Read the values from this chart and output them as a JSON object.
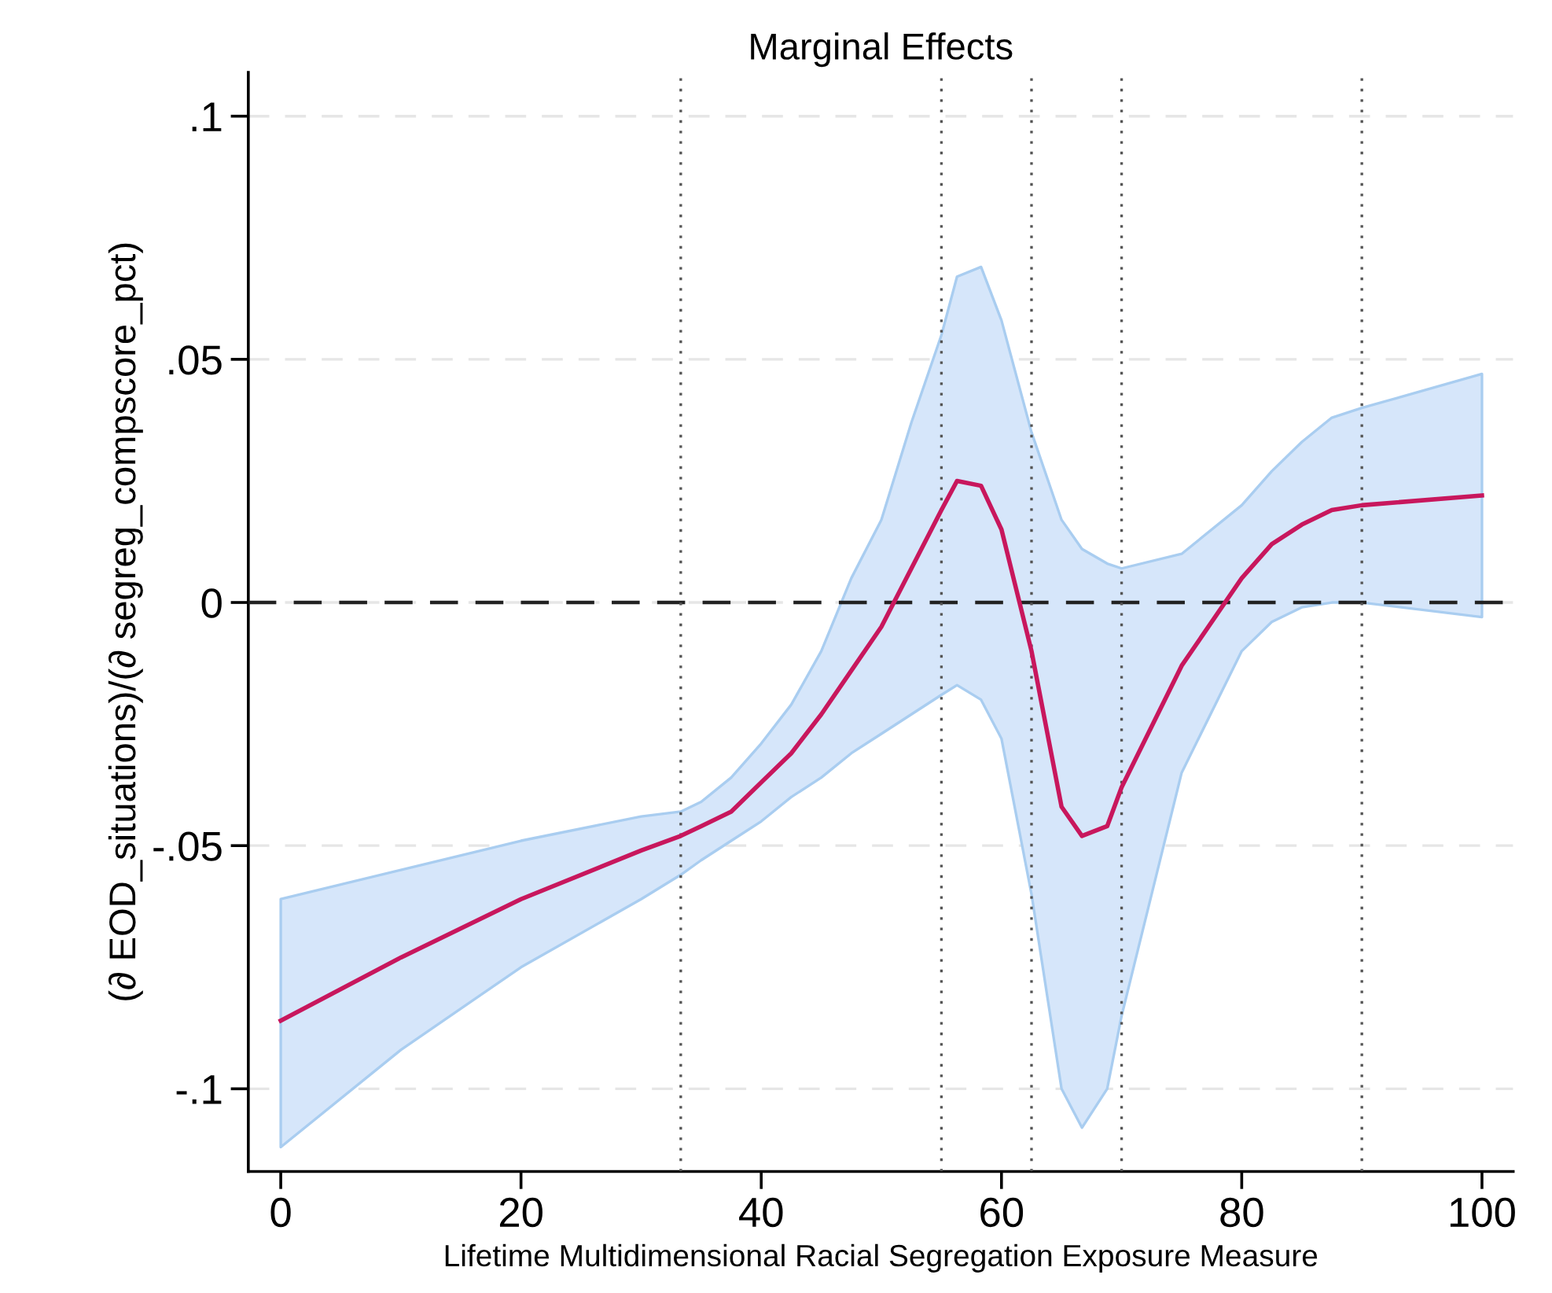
{
  "chart_data": {
    "type": "line",
    "title": "Marginal Effects",
    "xlabel": "Lifetime Multidimensional Racial Segregation Exposure Measure",
    "ylabel": "(∂ EOD_situations)/(∂ segreg_compscore_pct)",
    "series": [
      {
        "color": "#c8175d",
        "x": [
          0,
          10,
          20,
          30,
          33.3,
          35,
          37.5,
          40,
          42.5,
          45,
          47.5,
          50,
          52.5,
          55,
          56.3,
          58.3,
          60,
          62.5,
          65,
          66.7,
          68.8,
          70,
          75,
          80,
          82.5,
          85,
          87.5,
          90,
          100
        ],
        "values": [
          -0.086,
          -0.073,
          -0.061,
          -0.051,
          -0.048,
          -0.046,
          -0.043,
          -0.037,
          -0.031,
          -0.023,
          -0.014,
          -0.005,
          0.007,
          0.019,
          0.025,
          0.024,
          0.015,
          -0.01,
          -0.042,
          -0.048,
          -0.046,
          -0.038,
          -0.013,
          0.005,
          0.012,
          0.016,
          0.019,
          0.02,
          0.022
        ],
        "upper": [
          -0.061,
          -0.055,
          -0.049,
          -0.044,
          -0.043,
          -0.041,
          -0.036,
          -0.029,
          -0.021,
          -0.01,
          0.005,
          0.017,
          0.037,
          0.055,
          0.067,
          0.069,
          0.058,
          0.035,
          0.017,
          0.011,
          0.008,
          0.007,
          0.01,
          0.02,
          0.027,
          0.033,
          0.038,
          0.04,
          0.047
        ],
        "lower": [
          -0.112,
          -0.092,
          -0.075,
          -0.061,
          -0.056,
          -0.053,
          -0.049,
          -0.045,
          -0.04,
          -0.036,
          -0.031,
          -0.027,
          -0.023,
          -0.019,
          -0.017,
          -0.02,
          -0.028,
          -0.06,
          -0.1,
          -0.108,
          -0.1,
          -0.085,
          -0.035,
          -0.01,
          -0.004,
          -0.001,
          0,
          0,
          -0.003
        ]
      }
    ],
    "xlim": [
      -2.7,
      102.6
    ],
    "ylim": [
      -0.117,
      0.109
    ],
    "xticks": [
      0,
      20,
      40,
      60,
      80,
      100
    ],
    "yticks": [
      {
        "value": -0.1,
        "label": "-.1"
      },
      {
        "value": -0.05,
        "label": "-.05"
      },
      0,
      {
        "value": 0.05,
        "label": ".05"
      },
      {
        "value": 0.1,
        "label": ".1"
      }
    ],
    "grid": "y",
    "marker": "none",
    "line_style": "solid",
    "ref_lines": [
      {
        "axis": "y",
        "value": 0,
        "color": "#222222",
        "line_style": "dashed"
      },
      {
        "axis": "x",
        "value": 33.3,
        "color": "#555555",
        "line_style": "dotted"
      },
      {
        "axis": "x",
        "value": 55,
        "color": "#555555",
        "line_style": "dotted"
      },
      {
        "axis": "x",
        "value": 62.5,
        "color": "#555555",
        "line_style": "dotted"
      },
      {
        "axis": "x",
        "value": 70,
        "color": "#555555",
        "line_style": "dotted"
      },
      {
        "axis": "x",
        "value": 90,
        "color": "#555555",
        "line_style": "dotted"
      }
    ]
  }
}
